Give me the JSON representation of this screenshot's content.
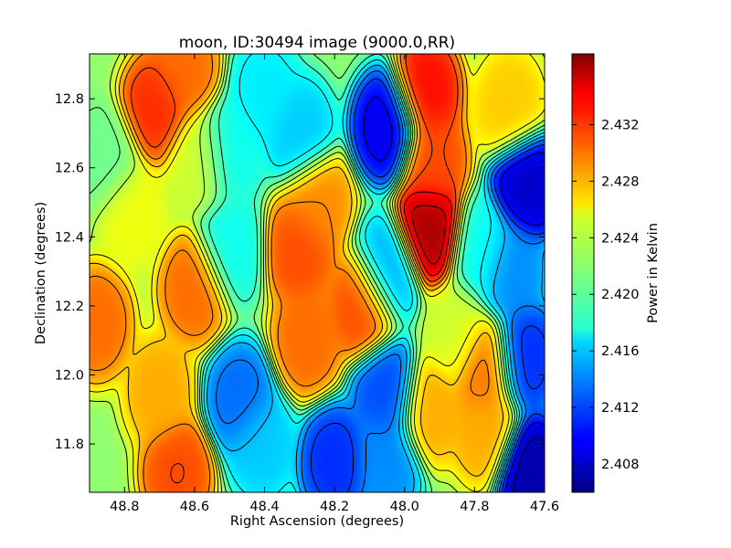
{
  "chart_data": {
    "type": "heatmap",
    "title": "moon, ID:30494 image (9000.0,RR)",
    "xlabel": "Right Ascension (degrees)",
    "ylabel": "Declination (degrees)",
    "xlim": [
      48.9,
      47.6
    ],
    "ylim": [
      11.66,
      12.93
    ],
    "x_ticks": [
      48.8,
      48.6,
      48.4,
      48.2,
      48.0,
      47.8,
      47.6
    ],
    "x_tick_labels": [
      "48.8",
      "48.6",
      "48.4",
      "48.2",
      "48.0",
      "47.8",
      "47.6"
    ],
    "y_ticks": [
      11.8,
      12.0,
      12.2,
      12.4,
      12.6,
      12.8
    ],
    "y_tick_labels": [
      "11.8",
      "12.0",
      "12.2",
      "12.4",
      "12.6",
      "12.8"
    ],
    "colormap": "jet",
    "colorbar": {
      "label": "Power in Kelvin",
      "range": [
        2.406,
        2.437
      ],
      "ticks": [
        2.408,
        2.412,
        2.416,
        2.42,
        2.424,
        2.428,
        2.432
      ],
      "tick_labels": [
        "2.408",
        "2.412",
        "2.416",
        "2.420",
        "2.424",
        "2.428",
        "2.432"
      ]
    },
    "contours": true,
    "grid": false,
    "features": [
      {
        "ra": 48.71,
        "dec": 12.77,
        "value": 2.432
      },
      {
        "ra": 48.63,
        "dec": 12.88,
        "value": 2.43
      },
      {
        "ra": 48.88,
        "dec": 12.15,
        "value": 2.43
      },
      {
        "ra": 48.7,
        "dec": 11.95,
        "value": 2.428
      },
      {
        "ra": 48.65,
        "dec": 11.72,
        "value": 2.431
      },
      {
        "ra": 48.85,
        "dec": 12.62,
        "value": 2.421
      },
      {
        "ra": 48.78,
        "dec": 12.47,
        "value": 2.425
      },
      {
        "ra": 48.6,
        "dec": 12.25,
        "value": 2.43
      },
      {
        "ra": 48.59,
        "dec": 12.62,
        "value": 2.424
      },
      {
        "ra": 48.5,
        "dec": 12.65,
        "value": 2.418
      },
      {
        "ra": 48.5,
        "dec": 12.36,
        "value": 2.418
      },
      {
        "ra": 48.47,
        "dec": 11.93,
        "value": 2.413
      },
      {
        "ra": 48.41,
        "dec": 11.8,
        "value": 2.416
      },
      {
        "ra": 48.4,
        "dec": 12.82,
        "value": 2.417
      },
      {
        "ra": 48.3,
        "dec": 12.36,
        "value": 2.431
      },
      {
        "ra": 48.28,
        "dec": 12.1,
        "value": 2.43
      },
      {
        "ra": 48.25,
        "dec": 12.5,
        "value": 2.429
      },
      {
        "ra": 48.12,
        "dec": 12.2,
        "value": 2.431
      },
      {
        "ra": 48.3,
        "dec": 12.7,
        "value": 2.416
      },
      {
        "ra": 48.2,
        "dec": 11.75,
        "value": 2.411
      },
      {
        "ra": 48.05,
        "dec": 12.72,
        "value": 2.409
      },
      {
        "ra": 48.05,
        "dec": 12.3,
        "value": 2.415
      },
      {
        "ra": 48.05,
        "dec": 11.95,
        "value": 2.412
      },
      {
        "ra": 48.05,
        "dec": 11.75,
        "value": 2.414
      },
      {
        "ra": 47.93,
        "dec": 12.42,
        "value": 2.436
      },
      {
        "ra": 47.94,
        "dec": 12.82,
        "value": 2.433
      },
      {
        "ra": 47.92,
        "dec": 12.62,
        "value": 2.431
      },
      {
        "ra": 47.93,
        "dec": 11.9,
        "value": 2.428
      },
      {
        "ra": 47.85,
        "dec": 12.12,
        "value": 2.424
      },
      {
        "ra": 47.77,
        "dec": 12.02,
        "value": 2.43
      },
      {
        "ra": 47.77,
        "dec": 11.84,
        "value": 2.428
      },
      {
        "ra": 47.78,
        "dec": 12.36,
        "value": 2.418
      },
      {
        "ra": 47.7,
        "dec": 12.78,
        "value": 2.427
      },
      {
        "ra": 47.65,
        "dec": 12.55,
        "value": 2.408
      },
      {
        "ra": 47.64,
        "dec": 11.72,
        "value": 2.407
      },
      {
        "ra": 47.66,
        "dec": 12.05,
        "value": 2.411
      },
      {
        "ra": 47.7,
        "dec": 12.3,
        "value": 2.414
      }
    ]
  }
}
